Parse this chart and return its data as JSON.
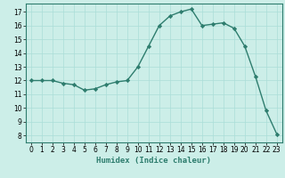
{
  "x": [
    0,
    1,
    2,
    3,
    4,
    5,
    6,
    7,
    8,
    9,
    10,
    11,
    12,
    13,
    14,
    15,
    16,
    17,
    18,
    19,
    20,
    21,
    22,
    23
  ],
  "y": [
    12.0,
    12.0,
    12.0,
    11.8,
    11.7,
    11.3,
    11.4,
    11.7,
    11.9,
    12.0,
    13.0,
    14.5,
    16.0,
    16.7,
    17.0,
    17.2,
    16.0,
    16.1,
    16.2,
    15.8,
    14.5,
    12.3,
    9.8,
    8.1
  ],
  "line_color": "#2e7d6e",
  "marker": "D",
  "marker_size": 2.2,
  "bg_color": "#cceee8",
  "grid_color": "#aaddd8",
  "xlabel": "Humidex (Indice chaleur)",
  "xlim": [
    -0.5,
    23.5
  ],
  "ylim": [
    7.5,
    17.6
  ],
  "yticks": [
    8,
    9,
    10,
    11,
    12,
    13,
    14,
    15,
    16,
    17
  ],
  "xticks": [
    0,
    1,
    2,
    3,
    4,
    5,
    6,
    7,
    8,
    9,
    10,
    11,
    12,
    13,
    14,
    15,
    16,
    17,
    18,
    19,
    20,
    21,
    22,
    23
  ],
  "tick_fontsize": 5.5,
  "xlabel_fontsize": 6.5,
  "line_width": 1.0
}
